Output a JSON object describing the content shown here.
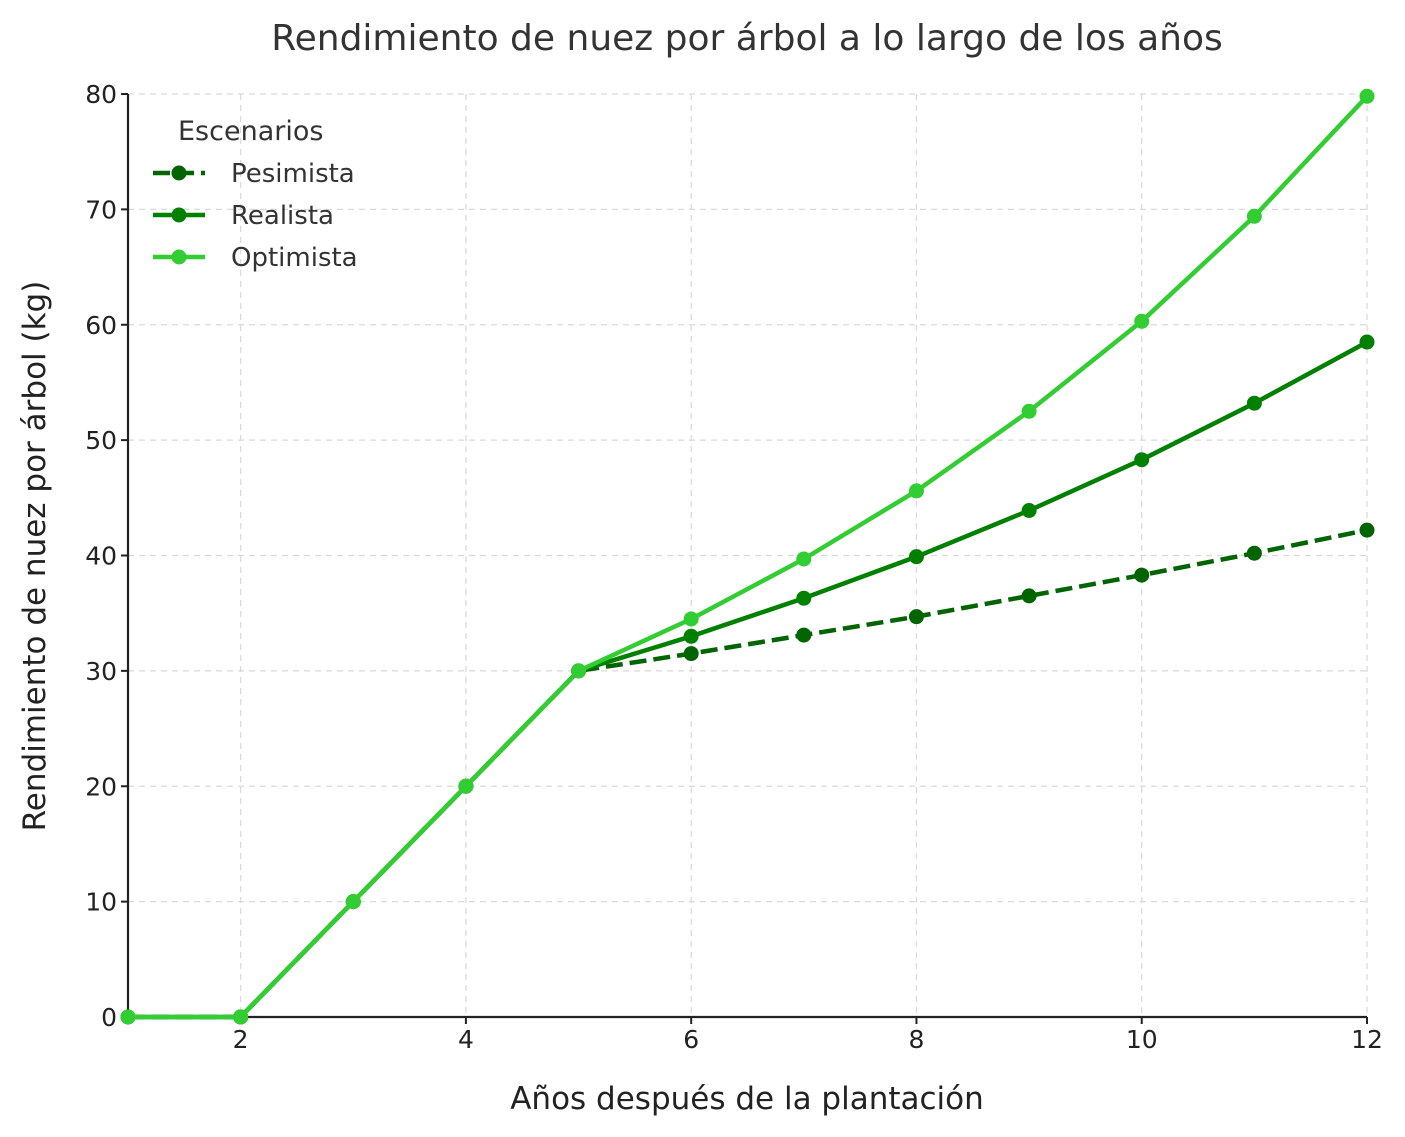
{
  "chart_data": {
    "type": "line",
    "title": "Rendimiento de nuez por árbol a lo largo de los años",
    "xlabel": "Años después de la plantación",
    "ylabel": "Rendimiento de nuez por árbol (kg)",
    "x": [
      1,
      2,
      3,
      4,
      5,
      6,
      7,
      8,
      9,
      10,
      11,
      12
    ],
    "xlim": [
      1,
      12
    ],
    "ylim": [
      0,
      80
    ],
    "xticks": [
      2,
      4,
      6,
      8,
      10,
      12
    ],
    "yticks": [
      0,
      10,
      20,
      30,
      40,
      50,
      60,
      70,
      80
    ],
    "grid": true,
    "legend": {
      "title": "Escenarios",
      "position": "top-left"
    },
    "series": [
      {
        "name": "Pesimista",
        "color": "#006400",
        "dashed": true,
        "values": [
          0,
          0,
          10,
          20,
          30,
          31.5,
          33.1,
          34.7,
          36.5,
          38.3,
          40.2,
          42.2
        ]
      },
      {
        "name": "Realista",
        "color": "#008000",
        "dashed": false,
        "values": [
          0,
          0,
          10,
          20,
          30,
          33.0,
          36.3,
          39.9,
          43.9,
          48.3,
          53.2,
          58.5
        ]
      },
      {
        "name": "Optimista",
        "color": "#32cd32",
        "dashed": false,
        "values": [
          0,
          0,
          10,
          20,
          30,
          34.5,
          39.7,
          45.6,
          52.5,
          60.3,
          69.4,
          79.8
        ]
      }
    ]
  }
}
